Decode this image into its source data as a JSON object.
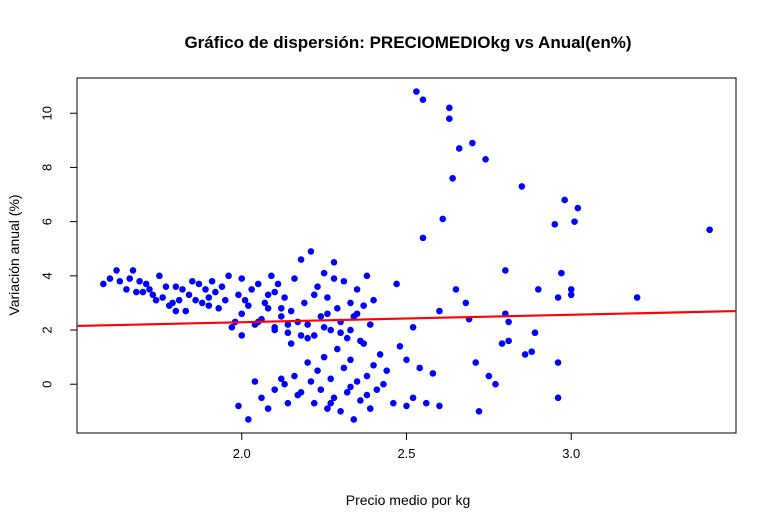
{
  "chart_data": {
    "type": "scatter",
    "title": "Gráfico de dispersión: PRECIOMEDIOkg vs Anual(en%)",
    "xlabel": "Precio medio por kg",
    "ylabel": "Variación anual (%)",
    "xlim": [
      1.5,
      3.5
    ],
    "ylim": [
      -1.8,
      11.3
    ],
    "xticks": [
      2.0,
      2.5,
      3.0
    ],
    "xtick_labels": [
      "2.0",
      "2.5",
      "3.0"
    ],
    "yticks": [
      0,
      2,
      4,
      6,
      8,
      10
    ],
    "ytick_labels": [
      "0",
      "2",
      "4",
      "6",
      "8",
      "10"
    ],
    "grid": false,
    "legend": "none",
    "point_color": "#0000ff",
    "line_color": "#ff0000",
    "regression_line": {
      "x": [
        1.5,
        3.5
      ],
      "y": [
        2.15,
        2.7
      ]
    },
    "points": [
      [
        1.58,
        3.7
      ],
      [
        1.6,
        3.9
      ],
      [
        1.62,
        4.2
      ],
      [
        1.63,
        3.8
      ],
      [
        1.65,
        3.5
      ],
      [
        1.66,
        3.9
      ],
      [
        1.67,
        4.2
      ],
      [
        1.68,
        3.4
      ],
      [
        1.69,
        3.8
      ],
      [
        1.7,
        3.4
      ],
      [
        1.71,
        3.7
      ],
      [
        1.72,
        3.5
      ],
      [
        1.73,
        3.3
      ],
      [
        1.74,
        3.1
      ],
      [
        1.75,
        4.0
      ],
      [
        1.76,
        3.2
      ],
      [
        1.77,
        3.6
      ],
      [
        1.78,
        2.9
      ],
      [
        1.79,
        3.0
      ],
      [
        1.8,
        2.7
      ],
      [
        1.8,
        3.6
      ],
      [
        1.81,
        3.1
      ],
      [
        1.82,
        3.5
      ],
      [
        1.83,
        2.7
      ],
      [
        1.84,
        3.3
      ],
      [
        1.85,
        3.8
      ],
      [
        1.86,
        3.1
      ],
      [
        1.87,
        3.7
      ],
      [
        1.88,
        3.0
      ],
      [
        1.89,
        3.5
      ],
      [
        1.9,
        3.2
      ],
      [
        1.9,
        2.9
      ],
      [
        1.91,
        3.8
      ],
      [
        1.92,
        3.4
      ],
      [
        1.93,
        2.8
      ],
      [
        1.94,
        3.6
      ],
      [
        1.95,
        3.1
      ],
      [
        1.96,
        4.0
      ],
      [
        1.97,
        2.1
      ],
      [
        1.98,
        2.3
      ],
      [
        1.99,
        3.3
      ],
      [
        2.0,
        3.9
      ],
      [
        2.0,
        2.6
      ],
      [
        2.01,
        3.1
      ],
      [
        2.02,
        2.9
      ],
      [
        2.03,
        3.5
      ],
      [
        2.04,
        2.2
      ],
      [
        2.05,
        3.7
      ],
      [
        2.06,
        2.4
      ],
      [
        2.07,
        3.0
      ],
      [
        2.08,
        2.8
      ],
      [
        2.09,
        4.0
      ],
      [
        2.1,
        3.4
      ],
      [
        2.1,
        2.1
      ],
      [
        2.11,
        3.7
      ],
      [
        2.12,
        2.5
      ],
      [
        2.13,
        3.2
      ],
      [
        2.14,
        1.9
      ],
      [
        2.15,
        2.7
      ],
      [
        2.16,
        3.9
      ],
      [
        2.17,
        2.3
      ],
      [
        2.18,
        4.6
      ],
      [
        2.19,
        3.0
      ],
      [
        2.2,
        2.2
      ],
      [
        2.21,
        4.9
      ],
      [
        2.22,
        1.8
      ],
      [
        2.23,
        3.6
      ],
      [
        2.24,
        2.5
      ],
      [
        2.25,
        4.1
      ],
      [
        2.26,
        3.2
      ],
      [
        2.27,
        2.0
      ],
      [
        2.28,
        4.5
      ],
      [
        2.29,
        2.8
      ],
      [
        2.3,
        2.3
      ],
      [
        2.31,
        3.8
      ],
      [
        2.32,
        1.7
      ],
      [
        2.33,
        3.0
      ],
      [
        2.34,
        2.5
      ],
      [
        2.35,
        3.5
      ],
      [
        2.36,
        1.6
      ],
      [
        2.37,
        2.9
      ],
      [
        2.38,
        4.0
      ],
      [
        2.39,
        2.2
      ],
      [
        2.4,
        3.1
      ],
      [
        2.0,
        1.8
      ],
      [
        2.05,
        2.3
      ],
      [
        2.1,
        2.0
      ],
      [
        2.15,
        1.5
      ],
      [
        2.2,
        1.7
      ],
      [
        2.25,
        2.1
      ],
      [
        2.3,
        1.9
      ],
      [
        2.12,
        2.8
      ],
      [
        2.18,
        1.8
      ],
      [
        2.26,
        2.6
      ],
      [
        2.33,
        2.0
      ],
      [
        2.08,
        3.3
      ],
      [
        2.22,
        3.3
      ],
      [
        2.28,
        3.9
      ],
      [
        2.35,
        2.6
      ],
      [
        2.14,
        2.2
      ],
      [
        1.99,
        -0.8
      ],
      [
        2.02,
        -1.3
      ],
      [
        2.04,
        0.1
      ],
      [
        2.06,
        -0.5
      ],
      [
        2.08,
        -0.9
      ],
      [
        2.1,
        -0.2
      ],
      [
        2.12,
        0.2
      ],
      [
        2.14,
        -0.7
      ],
      [
        2.16,
        0.3
      ],
      [
        2.18,
        -0.3
      ],
      [
        2.2,
        0.8
      ],
      [
        2.22,
        -0.7
      ],
      [
        2.23,
        0.5
      ],
      [
        2.24,
        -0.2
      ],
      [
        2.25,
        1.0
      ],
      [
        2.26,
        -0.9
      ],
      [
        2.27,
        0.2
      ],
      [
        2.28,
        -0.5
      ],
      [
        2.29,
        1.3
      ],
      [
        2.3,
        -1.0
      ],
      [
        2.31,
        0.6
      ],
      [
        2.32,
        -0.3
      ],
      [
        2.33,
        0.9
      ],
      [
        2.34,
        -1.3
      ],
      [
        2.35,
        0.1
      ],
      [
        2.36,
        -0.6
      ],
      [
        2.37,
        1.5
      ],
      [
        2.38,
        0.3
      ],
      [
        2.39,
        -0.9
      ],
      [
        2.4,
        0.7
      ],
      [
        2.41,
        -0.2
      ],
      [
        2.42,
        1.1
      ],
      [
        2.43,
        0.0
      ],
      [
        2.44,
        0.5
      ],
      [
        2.46,
        -0.7
      ],
      [
        2.48,
        1.4
      ],
      [
        2.5,
        -0.8
      ],
      [
        2.5,
        0.9
      ],
      [
        2.52,
        2.1
      ],
      [
        2.52,
        -0.5
      ],
      [
        2.54,
        0.6
      ],
      [
        2.56,
        -0.7
      ],
      [
        2.58,
        0.4
      ],
      [
        2.6,
        -0.8
      ],
      [
        2.13,
        0.0
      ],
      [
        2.17,
        -0.4
      ],
      [
        2.21,
        0.1
      ],
      [
        2.27,
        -0.7
      ],
      [
        2.33,
        -0.1
      ],
      [
        2.38,
        -0.4
      ],
      [
        2.47,
        3.7
      ],
      [
        2.53,
        10.8
      ],
      [
        2.55,
        10.5
      ],
      [
        2.55,
        5.4
      ],
      [
        2.6,
        2.7
      ],
      [
        2.61,
        6.1
      ],
      [
        2.63,
        10.2
      ],
      [
        2.63,
        9.8
      ],
      [
        2.64,
        7.6
      ],
      [
        2.65,
        3.5
      ],
      [
        2.66,
        8.7
      ],
      [
        2.68,
        3.0
      ],
      [
        2.69,
        2.4
      ],
      [
        2.7,
        8.9
      ],
      [
        2.71,
        0.8
      ],
      [
        2.72,
        -1.0
      ],
      [
        2.74,
        8.3
      ],
      [
        2.75,
        0.3
      ],
      [
        2.77,
        0.0
      ],
      [
        2.79,
        1.5
      ],
      [
        2.8,
        2.6
      ],
      [
        2.8,
        4.2
      ],
      [
        2.81,
        1.6
      ],
      [
        2.81,
        2.3
      ],
      [
        2.85,
        7.3
      ],
      [
        2.86,
        1.1
      ],
      [
        2.88,
        1.2
      ],
      [
        2.89,
        1.9
      ],
      [
        2.9,
        3.5
      ],
      [
        2.95,
        5.9
      ],
      [
        2.96,
        0.8
      ],
      [
        2.96,
        -0.5
      ],
      [
        2.96,
        3.2
      ],
      [
        2.97,
        4.1
      ],
      [
        2.98,
        6.8
      ],
      [
        3.0,
        3.3
      ],
      [
        3.0,
        3.5
      ],
      [
        3.01,
        6.0
      ],
      [
        3.02,
        6.5
      ],
      [
        3.2,
        3.2
      ],
      [
        3.42,
        5.7
      ]
    ]
  }
}
